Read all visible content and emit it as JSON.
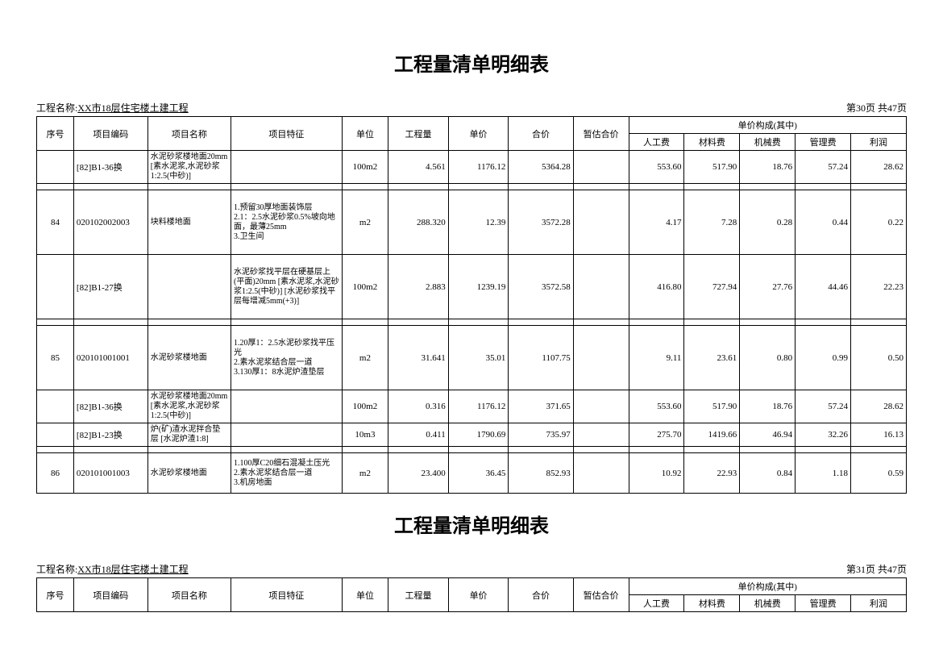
{
  "title": "工程量清单明细表",
  "project_label": "工程名称:",
  "project_name": "XX市18层住宅楼土建工程",
  "page_info_1": "第30页 共47页",
  "page_info_2": "第31页 共47页",
  "headers": {
    "seq": "序号",
    "code": "项目编码",
    "name": "项目名称",
    "feature": "项目特征",
    "unit": "单位",
    "qty": "工程量",
    "price": "单价",
    "total": "合价",
    "temp": "暂估合价",
    "group": "单价构成(其中)",
    "labor": "人工费",
    "material": "材料费",
    "machine": "机械费",
    "manage": "管理费",
    "profit": "利润"
  },
  "rows": [
    {
      "seq": "",
      "code": "[82]B1-36换",
      "name": "水泥砂浆楼地面20mm [素水泥浆,水泥砂浆1:2.5(中砂)]",
      "feature": "",
      "unit": "100m2",
      "qty": "4.561",
      "price": "1176.12",
      "total": "5364.28",
      "temp": "",
      "labor": "553.60",
      "material": "517.90",
      "machine": "18.76",
      "manage": "57.24",
      "profit": "28.62",
      "cls": "row-short"
    },
    {
      "sep": true
    },
    {
      "seq": "84",
      "code": "020102002003",
      "name": "块料楼地面",
      "feature": "1.预留30厚地面装饰层\n2.1：2.5水泥砂浆0.5%坡向地面，最薄25mm\n3.卫生间",
      "unit": "m2",
      "qty": "288.320",
      "price": "12.39",
      "total": "3572.28",
      "temp": "",
      "labor": "4.17",
      "material": "7.28",
      "machine": "0.28",
      "manage": "0.44",
      "profit": "0.22",
      "cls": "row-tall"
    },
    {
      "seq": "",
      "code": "[82]B1-27换",
      "name": "",
      "feature": "水泥砂浆找平层在硬基层上(平面)20mm [素水泥浆,水泥砂浆1:2.5(中砂)] [水泥砂浆找平层每增减5mm(+3)]",
      "unit": "100m2",
      "qty": "2.883",
      "price": "1239.19",
      "total": "3572.58",
      "temp": "",
      "labor": "416.80",
      "material": "727.94",
      "machine": "27.76",
      "manage": "44.46",
      "profit": "22.23",
      "cls": "row-tall"
    },
    {
      "sep": true
    },
    {
      "seq": "85",
      "code": "020101001001",
      "name": "水泥砂浆楼地面",
      "feature": "1.20厚1：2.5水泥砂浆找平压光\n2.素水泥浆结合层一道\n3.130厚1：8水泥炉渣垫层",
      "unit": "m2",
      "qty": "31.641",
      "price": "35.01",
      "total": "1107.75",
      "temp": "",
      "labor": "9.11",
      "material": "23.61",
      "machine": "0.80",
      "manage": "0.99",
      "profit": "0.50",
      "cls": "row-tall"
    },
    {
      "seq": "",
      "code": "[82]B1-36换",
      "name": "水泥砂浆楼地面20mm [素水泥浆,水泥砂浆1:2.5(中砂)]",
      "feature": "",
      "unit": "100m2",
      "qty": "0.316",
      "price": "1176.12",
      "total": "371.65",
      "temp": "",
      "labor": "553.60",
      "material": "517.90",
      "machine": "18.76",
      "manage": "57.24",
      "profit": "28.62",
      "cls": "row-short"
    },
    {
      "seq": "",
      "code": "[82]B1-23换",
      "name": "炉(矿)渣水泥拌合垫层 [水泥炉渣1:8]",
      "feature": "",
      "unit": "10m3",
      "qty": "0.411",
      "price": "1790.69",
      "total": "735.97",
      "temp": "",
      "labor": "275.70",
      "material": "1419.66",
      "machine": "46.94",
      "manage": "32.26",
      "profit": "16.13",
      "cls": "row-short"
    },
    {
      "sep": true
    },
    {
      "seq": "86",
      "code": "020101001003",
      "name": "水泥砂浆楼地面",
      "feature": "1.100厚C20细石混凝土压光\n2.素水泥浆结合层一道\n3.机房地面",
      "unit": "m2",
      "qty": "23.400",
      "price": "36.45",
      "total": "852.93",
      "temp": "",
      "labor": "10.92",
      "material": "22.93",
      "machine": "0.84",
      "manage": "1.18",
      "profit": "0.59",
      "cls": "row-med"
    }
  ]
}
